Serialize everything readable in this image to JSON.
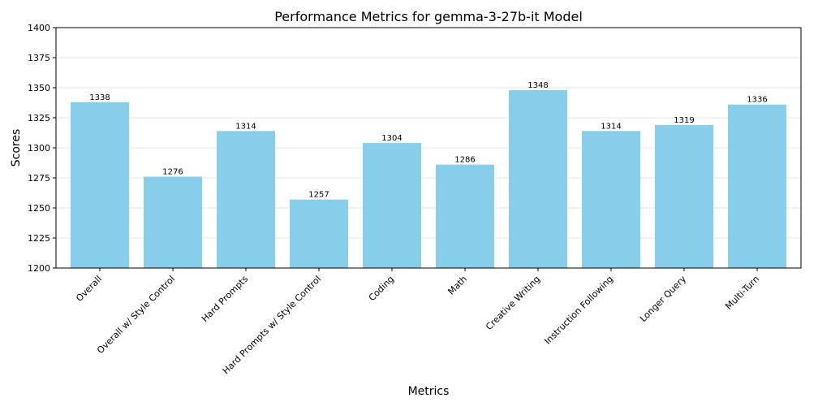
{
  "chart_data": {
    "type": "bar",
    "title": "Performance Metrics for gemma-3-27b-it Model",
    "xlabel": "Metrics",
    "ylabel": "Scores",
    "categories": [
      "Overall",
      "Overall w/ Style Control",
      "Hard Prompts",
      "Hard Prompts w/ Style Control",
      "Coding",
      "Math",
      "Creative Writing",
      "Instruction Following",
      "Longer Query",
      "Multi-Turn"
    ],
    "values": [
      1338,
      1276,
      1314,
      1257,
      1304,
      1286,
      1348,
      1314,
      1319,
      1336
    ],
    "ylim": [
      1200,
      1400
    ],
    "yticks": [
      1200,
      1225,
      1250,
      1275,
      1300,
      1325,
      1350,
      1375,
      1400
    ],
    "grid": "y",
    "bar_color": "#87ceeb"
  }
}
